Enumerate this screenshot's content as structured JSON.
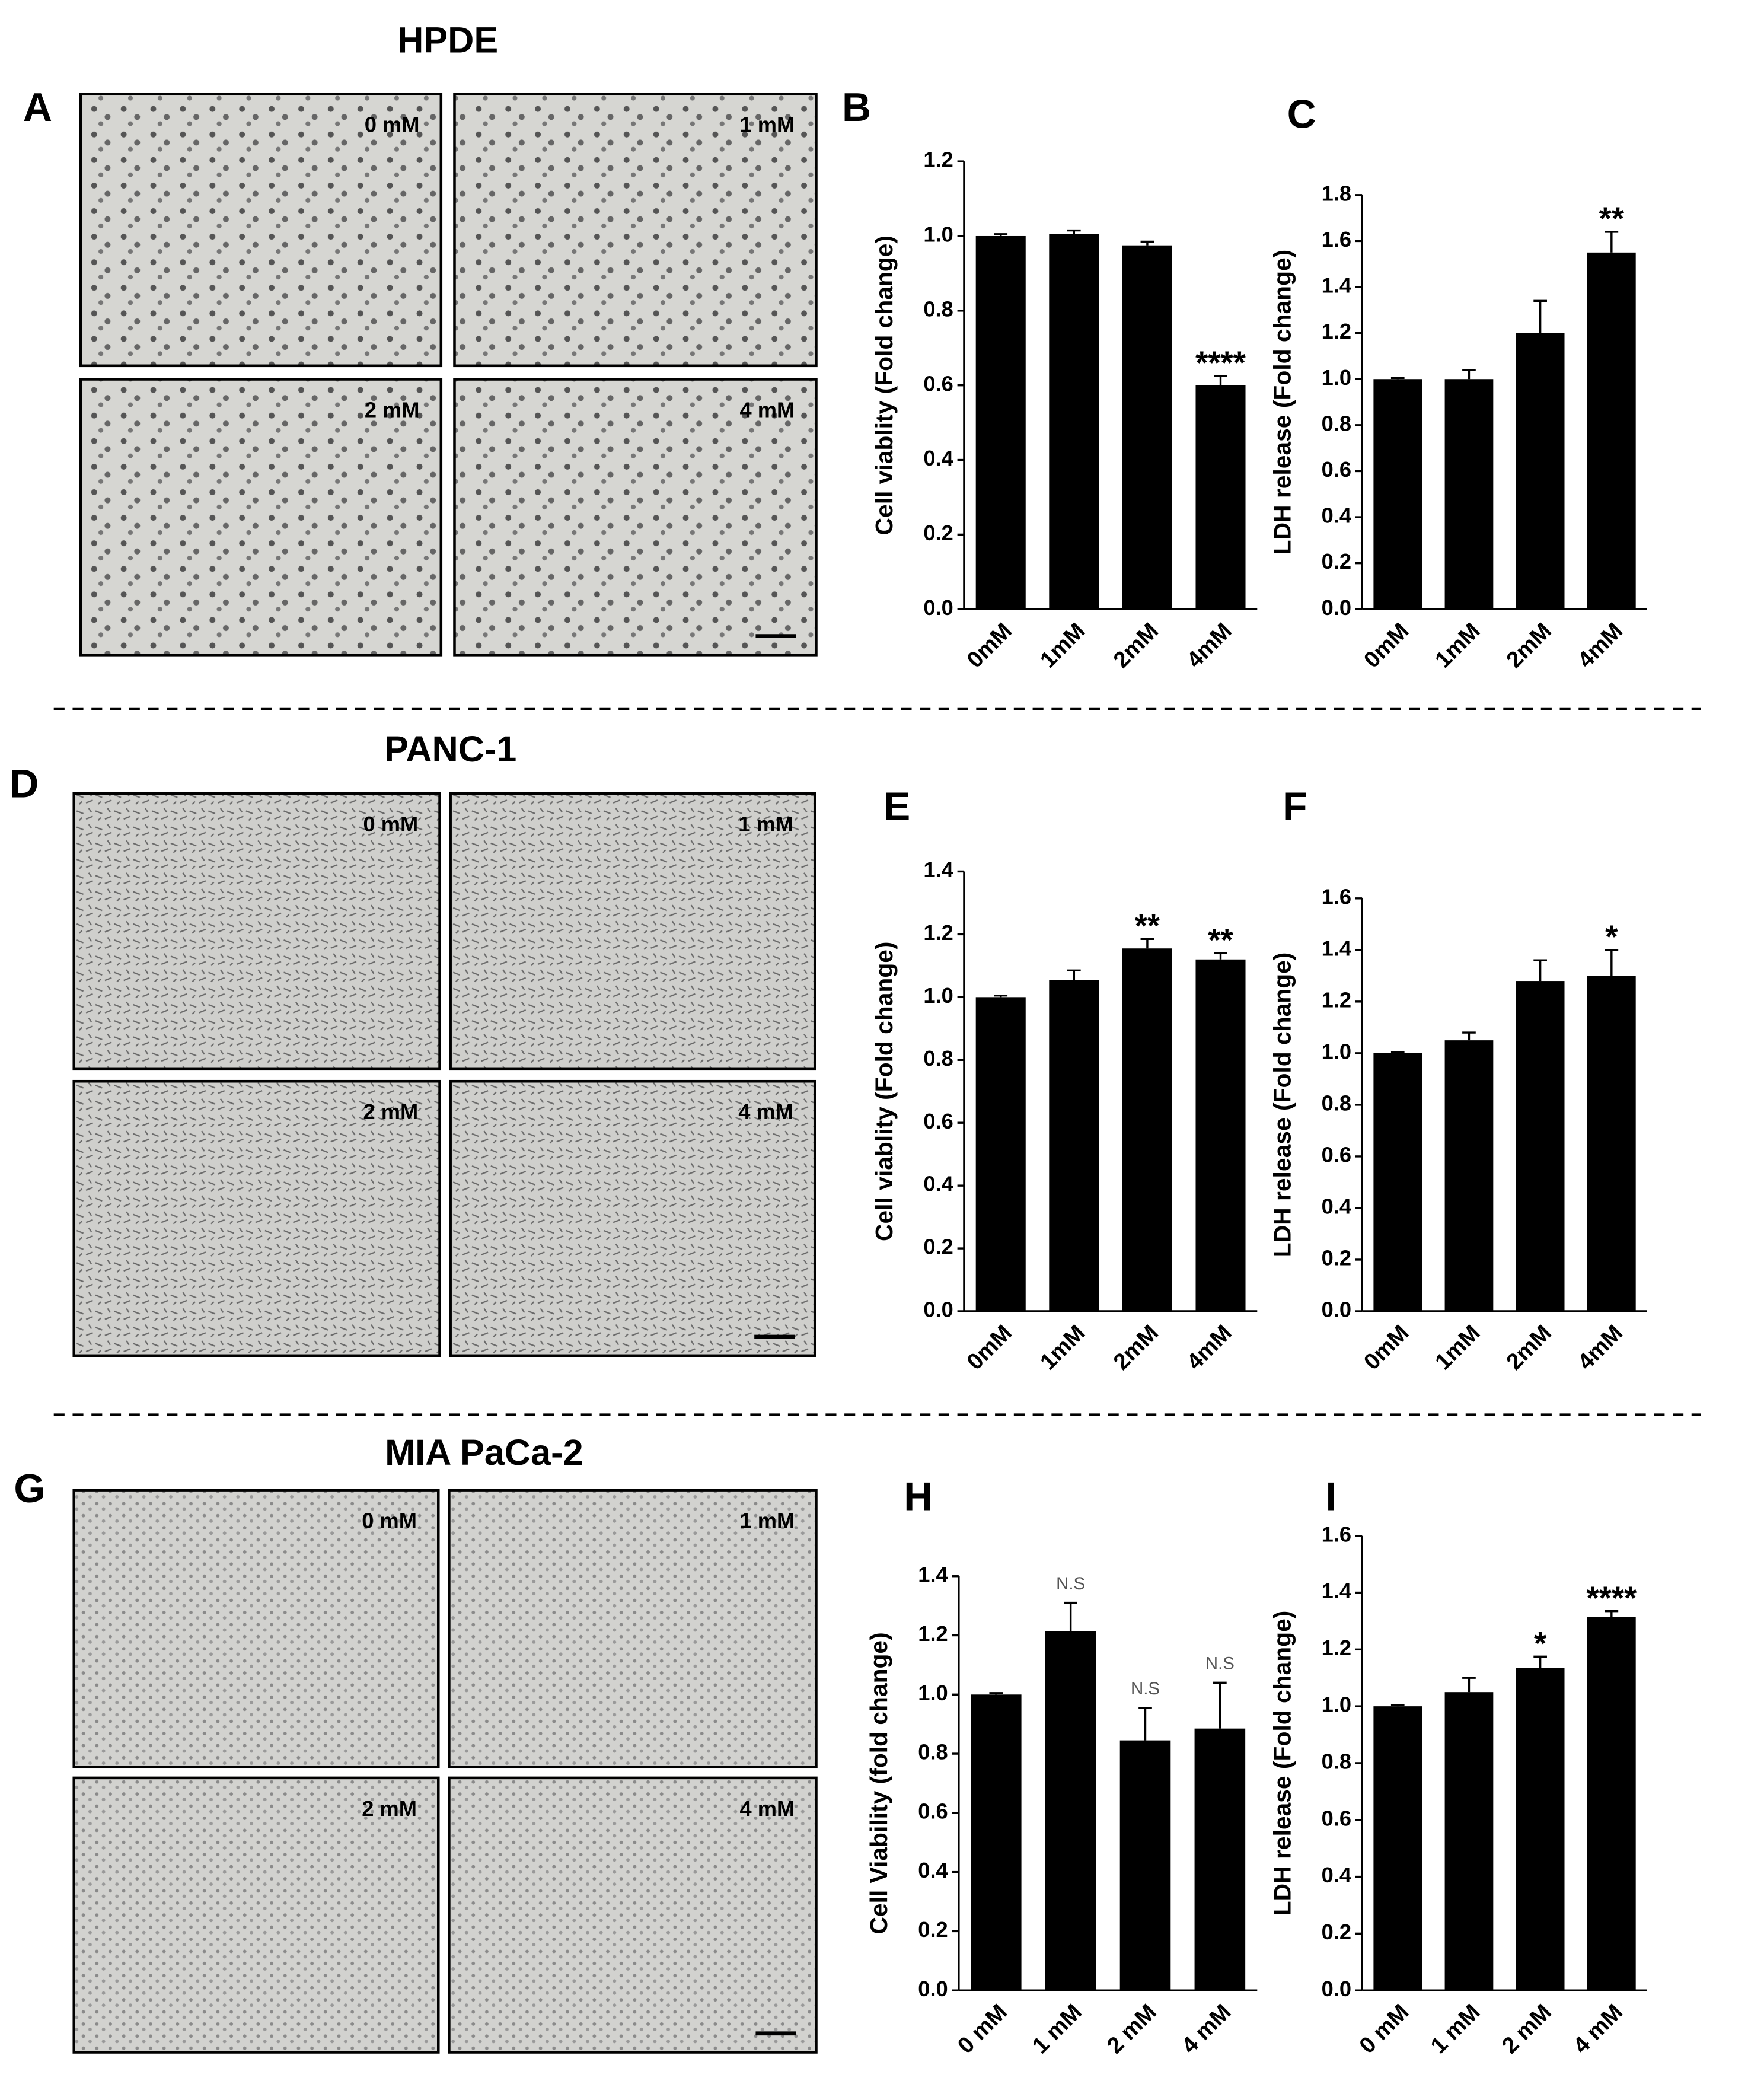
{
  "figure": {
    "sections": [
      {
        "panel": "A",
        "title": "HPDE",
        "images": [
          "0 mM",
          "1 mM",
          "2 mM",
          "4 mM"
        ]
      },
      {
        "panel": "D",
        "title": "PANC-1",
        "images": [
          "0 mM",
          "1 mM",
          "2 mM",
          "4 mM"
        ]
      },
      {
        "panel": "G",
        "title": "MIA PaCa-2",
        "images": [
          "0 mM",
          "1 mM",
          "2 mM",
          "4 mM"
        ]
      }
    ]
  },
  "chart_data": [
    {
      "type": "bar",
      "panel": "B",
      "ylabel": "Cell viablity (Fold change)",
      "categories": [
        "0mM",
        "1mM",
        "2mM",
        "4mM"
      ],
      "values": [
        1.0,
        1.005,
        0.975,
        0.6
      ],
      "errors": [
        0.005,
        0.01,
        0.01,
        0.025
      ],
      "annotations": [
        null,
        null,
        null,
        "****"
      ],
      "color": "#000000",
      "ylim": [
        0,
        1.2
      ],
      "yticks": [
        {
          "value": 0,
          "label": "0.0"
        },
        0.2,
        0.4,
        0.6,
        0.8,
        {
          "value": 1,
          "label": "1.0"
        },
        1.2
      ]
    },
    {
      "type": "bar",
      "panel": "C",
      "ylabel": "LDH release (Fold change)",
      "categories": [
        "0mM",
        "1mM",
        "2mM",
        "4mM"
      ],
      "values": [
        1.0,
        1.0,
        1.2,
        1.55
      ],
      "errors": [
        0.005,
        0.04,
        0.14,
        0.09
      ],
      "annotations": [
        null,
        null,
        null,
        "**"
      ],
      "color": "#000000",
      "ylim": [
        0,
        1.8
      ],
      "yticks": [
        {
          "value": 0,
          "label": "0.0"
        },
        0.2,
        0.4,
        0.6,
        0.8,
        {
          "value": 1,
          "label": "1.0"
        },
        1.2,
        1.4,
        1.6,
        1.8
      ]
    },
    {
      "type": "bar",
      "panel": "E",
      "ylabel": "Cell viablity (Fold change)",
      "categories": [
        "0mM",
        "1mM",
        "2mM",
        "4mM"
      ],
      "values": [
        1.0,
        1.055,
        1.155,
        1.12
      ],
      "errors": [
        0.005,
        0.03,
        0.03,
        0.02
      ],
      "annotations": [
        null,
        null,
        "**",
        "**"
      ],
      "color": "#000000",
      "ylim": [
        0,
        1.4
      ],
      "yticks": [
        {
          "value": 0,
          "label": "0.0"
        },
        0.2,
        0.4,
        0.6,
        0.8,
        {
          "value": 1,
          "label": "1.0"
        },
        1.2,
        1.4
      ]
    },
    {
      "type": "bar",
      "panel": "F",
      "ylabel": "LDH release (Fold change)",
      "categories": [
        "0mM",
        "1mM",
        "2mM",
        "4mM"
      ],
      "values": [
        1.0,
        1.05,
        1.28,
        1.3
      ],
      "errors": [
        0.005,
        0.03,
        0.08,
        0.1
      ],
      "annotations": [
        null,
        null,
        null,
        "*"
      ],
      "color": "#000000",
      "ylim": [
        0,
        1.6
      ],
      "yticks": [
        {
          "value": 0,
          "label": "0.0"
        },
        0.2,
        0.4,
        0.6,
        0.8,
        {
          "value": 1,
          "label": "1.0"
        },
        1.2,
        1.4,
        1.6
      ]
    },
    {
      "type": "bar",
      "panel": "H",
      "ylabel": "Cell Viability (fold change)",
      "categories": [
        "0 mM",
        "1 mM",
        "2 mM",
        "4 mM"
      ],
      "values": [
        1.0,
        1.215,
        0.845,
        0.885
      ],
      "errors": [
        0.005,
        0.095,
        0.11,
        0.155
      ],
      "annotations": [
        null,
        "N.S",
        "N.S",
        "N.S"
      ],
      "color": "#000000",
      "ylim": [
        0,
        1.4
      ],
      "yticks": [
        {
          "value": 0,
          "label": "0.0"
        },
        0.2,
        0.4,
        0.6,
        0.8,
        {
          "value": 1,
          "label": "1.0"
        },
        1.2,
        1.4
      ]
    },
    {
      "type": "bar",
      "panel": "I",
      "ylabel": "LDH release (Fold change)",
      "categories": [
        "0 mM",
        "1 mM",
        "2 mM",
        "4 mM"
      ],
      "values": [
        1.0,
        1.05,
        1.135,
        1.315
      ],
      "errors": [
        0.005,
        0.05,
        0.04,
        0.02
      ],
      "annotations": [
        null,
        null,
        "*",
        "****"
      ],
      "color": "#000000",
      "ylim": [
        0,
        1.6
      ],
      "yticks": [
        {
          "value": 0,
          "label": "0.0"
        },
        0.2,
        0.4,
        0.6,
        0.8,
        {
          "value": 1,
          "label": "1.0"
        },
        1.2,
        1.4,
        1.6
      ]
    }
  ]
}
